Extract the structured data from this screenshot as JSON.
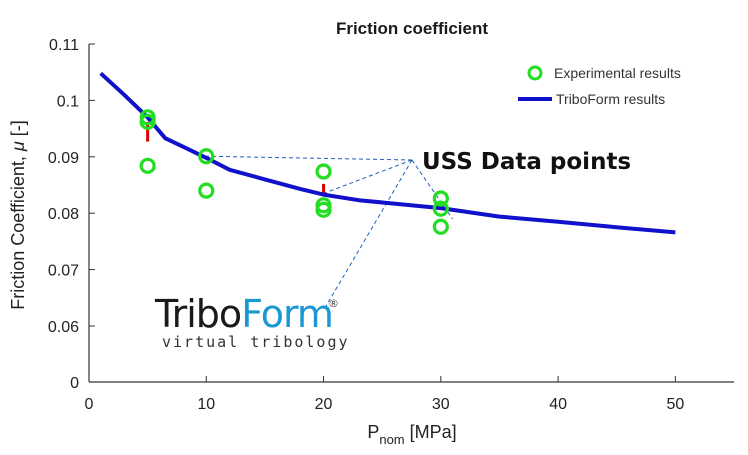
{
  "chart_data": {
    "type": "scatter",
    "title": "Friction coefficient",
    "xlabel_main": "P",
    "xlabel_sub": "nom",
    "xlabel_unit": " [MPa]",
    "ylabel_main": "Friction Coefficient, ",
    "ylabel_symbol": "μ",
    "ylabel_unit": " [-]",
    "xlim": [
      0,
      55
    ],
    "ylim": [
      0,
      0.11
    ],
    "xticks": [
      0,
      10,
      20,
      30,
      40,
      50
    ],
    "yticks": [
      0,
      0.06,
      0.07,
      0.08,
      0.09,
      0.1,
      0.11
    ],
    "yticklabels": [
      "0",
      "0.06",
      "0.07",
      "0.08",
      "0.09",
      "0.1",
      "0.11"
    ],
    "broken_y_axis": true,
    "grid": false,
    "legend_position": "top-right",
    "colors": {
      "experimental": "#22dd22",
      "triboform": "#1111cc",
      "errorbar": "#dd0000",
      "annotation_line": "#1f5fbf"
    },
    "series": [
      {
        "name": "Experimental results",
        "kind": "scatter",
        "x": [
          5,
          5,
          5,
          10,
          10,
          20,
          20,
          20,
          30,
          30,
          30
        ],
        "y": [
          0.097,
          0.0962,
          0.0884,
          0.0901,
          0.084,
          0.0874,
          0.0814,
          0.0806,
          0.0826,
          0.0808,
          0.0776
        ]
      },
      {
        "name": "TriboForm results",
        "kind": "line",
        "x": [
          1,
          3,
          5,
          6.5,
          8,
          10,
          12,
          15,
          18,
          20,
          23,
          27,
          30,
          35,
          40,
          45,
          50
        ],
        "y": [
          0.1048,
          0.101,
          0.097,
          0.0933,
          0.0918,
          0.0898,
          0.0877,
          0.086,
          0.0843,
          0.0833,
          0.0823,
          0.0815,
          0.0809,
          0.0794,
          0.0785,
          0.0775,
          0.0766
        ]
      }
    ],
    "error_bars": [
      {
        "x": 5,
        "y_low": 0.0927,
        "y_high": 0.0962
      },
      {
        "x": 20,
        "y_low": 0.0835,
        "y_high": 0.0852
      }
    ],
    "annotation": {
      "text": "USS Data points",
      "targets": [
        {
          "x": 10,
          "y": 0.0901
        },
        {
          "x": 20,
          "y": 0.0835
        },
        {
          "x": 31,
          "y": 0.079
        },
        {
          "x": 20,
          "y": 0.0628
        }
      ]
    }
  },
  "logo": {
    "part1": "Tribo",
    "part2": "Form",
    "mark": "®",
    "tagline": "virtual tribology",
    "color1": "#1a1a1a",
    "color2": "#1a98d4"
  }
}
